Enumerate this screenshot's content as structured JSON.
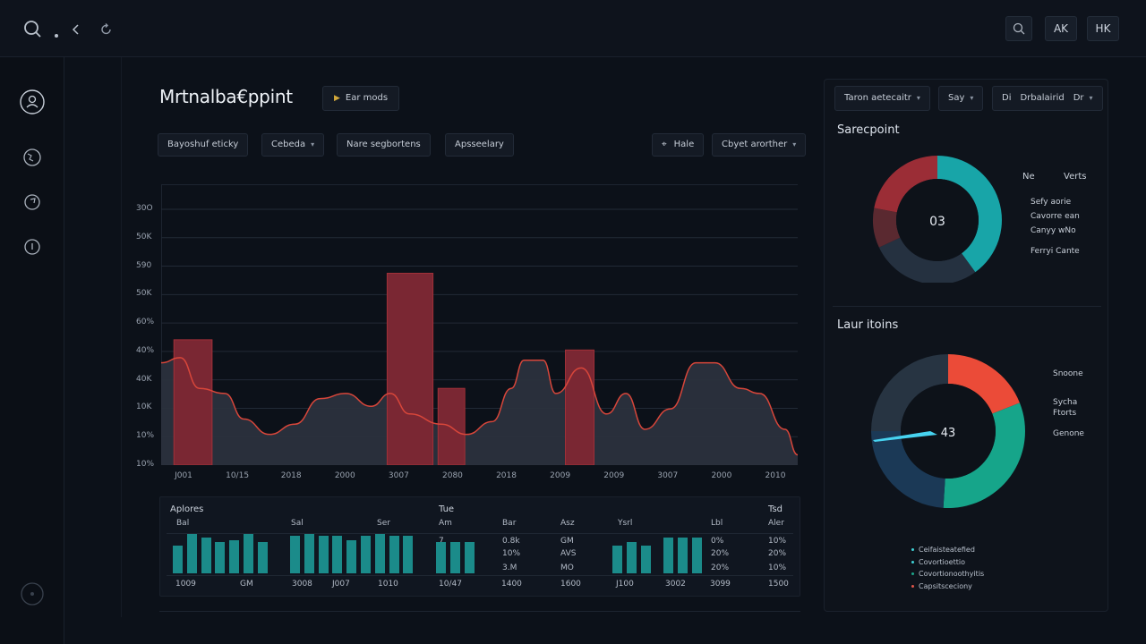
{
  "topbar": {
    "right_buttons": [
      "AK",
      "HK"
    ]
  },
  "header": {
    "title": "Mrtnalba€ppint",
    "play_button": "Ear mods"
  },
  "filters": [
    {
      "label": "Bayoshuf eticky",
      "caret": false
    },
    {
      "label": "Cebeda",
      "caret": true
    },
    {
      "label": "Nare segbortens",
      "caret": false
    },
    {
      "label": "Apsseelary",
      "caret": false
    }
  ],
  "filters_right": [
    {
      "label": "Hale",
      "icon": "⌖"
    },
    {
      "label": "Cbyet arorther",
      "caret": true
    }
  ],
  "chart_data": {
    "type": "area",
    "y_ticks": [
      "30O",
      "50K",
      "590",
      "50K",
      "60%",
      "40%",
      "40K",
      "10K",
      "10%",
      "10%"
    ],
    "x_ticks": [
      "J001",
      "10/15",
      "2018",
      "2000",
      "3007",
      "2080",
      "2018",
      "2009",
      "2009",
      "3007",
      "2000",
      "2010"
    ],
    "ylim": [
      0,
      100
    ],
    "area_series": [
      {
        "x": 0.0,
        "y": 40
      },
      {
        "x": 0.03,
        "y": 42
      },
      {
        "x": 0.06,
        "y": 30
      },
      {
        "x": 0.1,
        "y": 28
      },
      {
        "x": 0.13,
        "y": 18
      },
      {
        "x": 0.17,
        "y": 12
      },
      {
        "x": 0.21,
        "y": 16
      },
      {
        "x": 0.25,
        "y": 26
      },
      {
        "x": 0.29,
        "y": 28
      },
      {
        "x": 0.33,
        "y": 23
      },
      {
        "x": 0.36,
        "y": 28
      },
      {
        "x": 0.39,
        "y": 20
      },
      {
        "x": 0.44,
        "y": 16
      },
      {
        "x": 0.48,
        "y": 12
      },
      {
        "x": 0.52,
        "y": 17
      },
      {
        "x": 0.55,
        "y": 30
      },
      {
        "x": 0.57,
        "y": 41
      },
      {
        "x": 0.6,
        "y": 41
      },
      {
        "x": 0.62,
        "y": 28
      },
      {
        "x": 0.66,
        "y": 38
      },
      {
        "x": 0.7,
        "y": 20
      },
      {
        "x": 0.73,
        "y": 28
      },
      {
        "x": 0.76,
        "y": 14
      },
      {
        "x": 0.8,
        "y": 22
      },
      {
        "x": 0.84,
        "y": 40
      },
      {
        "x": 0.87,
        "y": 40
      },
      {
        "x": 0.91,
        "y": 30
      },
      {
        "x": 0.94,
        "y": 28
      },
      {
        "x": 0.98,
        "y": 14
      },
      {
        "x": 1.0,
        "y": 4
      }
    ],
    "bars": [
      {
        "x": 0.02,
        "w": 0.06,
        "value": 49
      },
      {
        "x": 0.355,
        "w": 0.072,
        "value": 75
      },
      {
        "x": 0.435,
        "w": 0.042,
        "value": 30
      },
      {
        "x": 0.635,
        "w": 0.045,
        "value": 45
      }
    ],
    "colors": {
      "area_fill": "#2b313d",
      "area_line": "#d8463a",
      "bar": "#7a2733",
      "bar_stroke": "#a13038"
    }
  },
  "table": {
    "title": "Aplores",
    "tab": "Tue",
    "tab_right": "Tsd",
    "col_headers": [
      "Bal",
      "Sal",
      "Ser",
      "Am",
      "Bar",
      "Asz",
      "Ysrl",
      "Lbl",
      "Aler"
    ],
    "values_col1": [
      "0.8k",
      "10%",
      "3.M"
    ],
    "values_col2": [
      "GM",
      "AVS",
      "MO"
    ],
    "values_col3": [
      "0%",
      "20%",
      "20%"
    ],
    "values_col4": [
      "10%",
      "20%",
      "10%"
    ],
    "markers": [
      "7",
      "1"
    ],
    "footer": [
      "1009",
      "GM",
      "3008",
      "J007",
      "1010",
      "10/47",
      "1400",
      "1600",
      "J100",
      "3002",
      "3099",
      "1500"
    ],
    "mini_bars": [
      [
        0.7,
        1.0,
        0.9,
        0.8,
        0.85,
        1.0,
        0.8
      ],
      [
        0.95,
        1.0,
        0.95,
        0.95,
        0.85,
        0.95,
        1.0,
        0.95,
        0.95
      ],
      [
        0.8,
        0.8,
        0.8
      ],
      [
        0.7,
        0.8,
        0.7
      ],
      [
        0.9,
        0.9,
        0.9
      ]
    ],
    "mini_bar_color": "#1b8b8a"
  },
  "right": {
    "controls": [
      {
        "label": "Taron aetecaitr",
        "caret": true
      },
      {
        "label": "Say",
        "caret": true
      },
      {
        "label": "Drbalairid",
        "prefix": "Di",
        "caret": false
      },
      {
        "label": "Dr",
        "caret": true
      }
    ],
    "donut1": {
      "title": "Sarecpoint",
      "center": "03",
      "legend_header": [
        "Ne",
        "Verts"
      ],
      "labels": [
        "Sefy aorie",
        "Cavorre ean",
        "Canyy wNo",
        "Ferryi Cante"
      ],
      "segments": [
        {
          "value": 40,
          "color": "#18a5a8"
        },
        {
          "value": 28,
          "color": "#253140"
        },
        {
          "value": 10,
          "color": "#5a2930"
        },
        {
          "value": 22,
          "color": "#9b2d36"
        }
      ]
    },
    "donut2": {
      "title": "Laur itoins",
      "center": "43",
      "labels": [
        "Snoone",
        "Sycha Ftorts",
        "Genone"
      ],
      "segments": [
        {
          "value": 19,
          "color": "#eb4b38"
        },
        {
          "value": 32,
          "color": "#16a58a"
        },
        {
          "value": 24,
          "color": "#1b3956"
        },
        {
          "value": 25,
          "color": "#273442"
        }
      ],
      "needle_color": "#47d3f0"
    },
    "legend": [
      {
        "label": "Ceifaisteatefied",
        "color": "#3fd1d6"
      },
      {
        "label": "Covortioettio",
        "color": "#3fd1d6"
      },
      {
        "label": "Covortionoothyitis",
        "color": "#1ca58a"
      },
      {
        "label": "Capsitsceciony",
        "color": "#e0564a"
      }
    ]
  }
}
